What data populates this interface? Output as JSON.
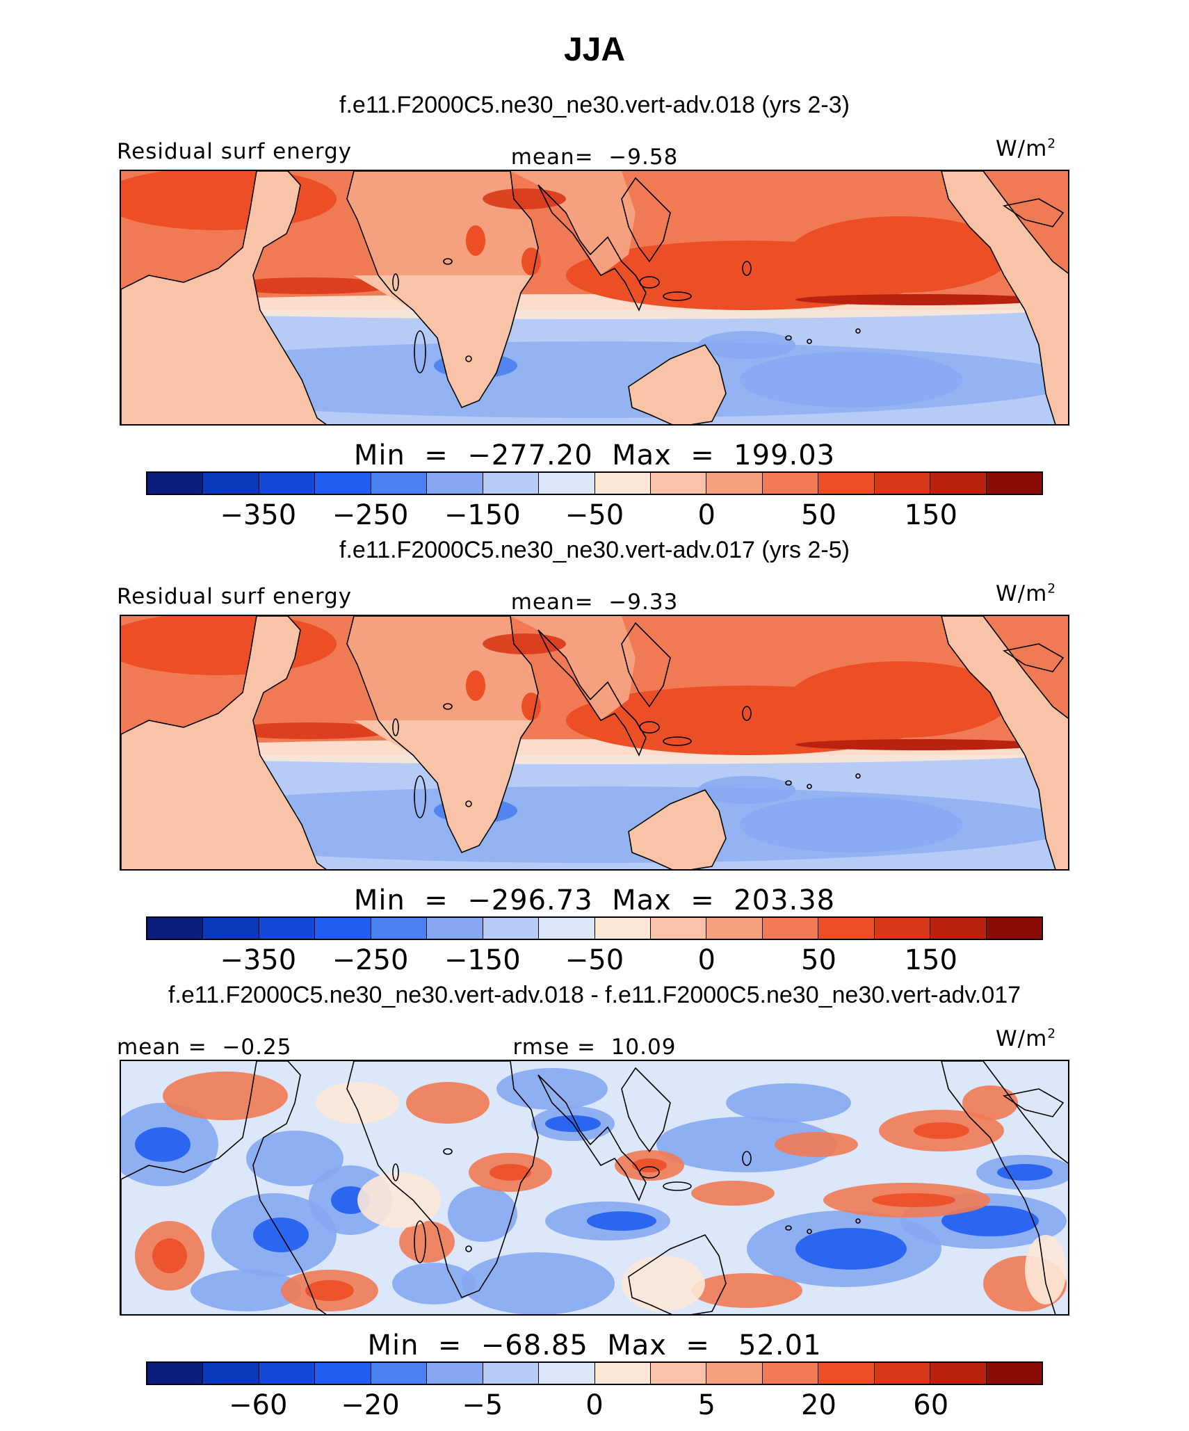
{
  "title": "JJA",
  "colors": [
    "#0a1e80",
    "#0b3ab8",
    "#1148d6",
    "#1f5ef0",
    "#4a80f0",
    "#86a8f2",
    "#b6cbf6",
    "#dce7fa",
    "#fde8d8",
    "#f9c3a8",
    "#f5a07e",
    "#f07a54",
    "#ec4e26",
    "#d8381a",
    "#b8220f",
    "#8a0e06"
  ],
  "chart_data": [
    {
      "type": "heatmap",
      "case_title": "f.e11.F2000C5.ne30_ne30.vert-adv.018 (yrs 2-3)",
      "left_label": "Residual surf energy",
      "center_label": "mean=  −9.58",
      "units_label": "W/m",
      "units_sup": "2",
      "mean": -9.58,
      "min": -277.2,
      "max": 199.03,
      "minmax_text": "Min  =  −277.20  Max  =  199.03",
      "colorbar_ticks": [
        "−350",
        "−250",
        "−150",
        "−50",
        "0",
        "50",
        "150"
      ],
      "colorbar_levels": [
        -400,
        -350,
        -300,
        -250,
        -200,
        -150,
        -100,
        -50,
        -25,
        0,
        25,
        50,
        100,
        150,
        200
      ]
    },
    {
      "type": "heatmap",
      "case_title": "f.e11.F2000C5.ne30_ne30.vert-adv.017 (yrs 2-5)",
      "left_label": "Residual surf energy",
      "center_label": "mean=  −9.33",
      "units_label": "W/m",
      "units_sup": "2",
      "mean": -9.33,
      "min": -296.73,
      "max": 203.38,
      "minmax_text": "Min  =  −296.73  Max  =  203.38",
      "colorbar_ticks": [
        "−350",
        "−250",
        "−150",
        "−50",
        "0",
        "50",
        "150"
      ],
      "colorbar_levels": [
        -400,
        -350,
        -300,
        -250,
        -200,
        -150,
        -100,
        -50,
        -25,
        0,
        25,
        50,
        100,
        150,
        200
      ]
    },
    {
      "type": "heatmap",
      "case_title": "f.e11.F2000C5.ne30_ne30.vert-adv.018 - f.e11.F2000C5.ne30_ne30.vert-adv.017",
      "left_label": "mean =  −0.25",
      "center_label": "rmse =  10.09",
      "units_label": "W/m",
      "units_sup": "2",
      "mean": -0.25,
      "rmse": 10.09,
      "min": -68.85,
      "max": 52.01,
      "minmax_text": "Min  =  −68.85  Max  =   52.01",
      "colorbar_ticks": [
        "−60",
        "−20",
        "−5",
        "0",
        "5",
        "20",
        "60"
      ],
      "colorbar_levels": [
        -80,
        -60,
        -40,
        -20,
        -10,
        -5,
        -2,
        0,
        2,
        5,
        10,
        20,
        40,
        60,
        80
      ]
    }
  ]
}
